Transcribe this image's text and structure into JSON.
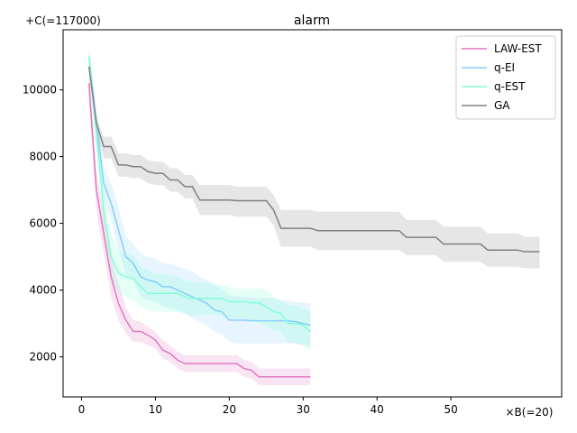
{
  "chart_data": {
    "type": "line",
    "title": "alarm",
    "xlabel": "",
    "ylabel": "",
    "y_offset_label": "+C(=117000)",
    "x_multiplier_label": "×B(=20)",
    "xlim": [
      -2.5,
      65
    ],
    "ylim": [
      800,
      11800
    ],
    "xticks": [
      0,
      10,
      20,
      30,
      40,
      50
    ],
    "xtick_labels": [
      "0",
      "10",
      "20",
      "30",
      "40",
      "50"
    ],
    "yticks": [
      2000,
      4000,
      6000,
      8000,
      10000
    ],
    "ytick_labels": [
      "2000",
      "4000",
      "6000",
      "8000",
      "10000"
    ],
    "legend_position": "top-right",
    "grid": false,
    "series": [
      {
        "name": "LAW-EST",
        "color": "#e377c2",
        "x": [
          1,
          2,
          3,
          4,
          5,
          6,
          7,
          8,
          9,
          10,
          11,
          12,
          13,
          14,
          15,
          16,
          17,
          18,
          19,
          20,
          21,
          22,
          23,
          24,
          25,
          26,
          27,
          28,
          29,
          30,
          31
        ],
        "y": [
          10200,
          7000,
          5700,
          4400,
          3600,
          3100,
          2760,
          2760,
          2650,
          2500,
          2200,
          2100,
          1900,
          1800,
          1800,
          1800,
          1800,
          1800,
          1800,
          1800,
          1800,
          1650,
          1600,
          1400,
          1400,
          1400,
          1400,
          1400,
          1400,
          1400,
          1400
        ],
        "upper": [
          10800,
          7600,
          6300,
          5000,
          4200,
          3500,
          3100,
          3050,
          2900,
          2750,
          2500,
          2350,
          2150,
          2050,
          2050,
          2050,
          2050,
          2050,
          2050,
          2050,
          2050,
          1900,
          1850,
          1650,
          1650,
          1650,
          1650,
          1650,
          1650,
          1650,
          1650
        ],
        "lower": [
          9600,
          6400,
          5100,
          3800,
          3100,
          2700,
          2450,
          2450,
          2350,
          2250,
          1950,
          1850,
          1650,
          1550,
          1550,
          1550,
          1550,
          1550,
          1550,
          1550,
          1550,
          1400,
          1350,
          1150,
          1150,
          1150,
          1150,
          1150,
          1150,
          1150,
          1150
        ]
      },
      {
        "name": "q-EI",
        "color": "#87cefa",
        "x": [
          1,
          2,
          3,
          4,
          5,
          6,
          7,
          8,
          9,
          10,
          11,
          12,
          13,
          14,
          15,
          16,
          17,
          18,
          19,
          20,
          21,
          22,
          23,
          24,
          25,
          26,
          27,
          28,
          29,
          30,
          31
        ],
        "y": [
          11000,
          9000,
          7200,
          6600,
          5800,
          5000,
          4800,
          4400,
          4300,
          4250,
          4100,
          4100,
          4000,
          3900,
          3800,
          3700,
          3600,
          3400,
          3350,
          3100,
          3100,
          3100,
          3080,
          3080,
          3080,
          3080,
          3080,
          3080,
          3050,
          3000,
          2950
        ],
        "upper": [
          11300,
          9500,
          7700,
          7200,
          6500,
          5600,
          5400,
          5100,
          5000,
          4950,
          4800,
          4800,
          4700,
          4650,
          4550,
          4400,
          4300,
          4150,
          4050,
          3850,
          3800,
          3800,
          3780,
          3760,
          3760,
          3760,
          3700,
          3700,
          3650,
          3620,
          3600
        ],
        "lower": [
          10600,
          8400,
          6700,
          6100,
          5200,
          4500,
          4300,
          3800,
          3700,
          3650,
          3500,
          3450,
          3400,
          3300,
          3150,
          3050,
          2950,
          2750,
          2650,
          2450,
          2400,
          2400,
          2400,
          2400,
          2400,
          2400,
          2400,
          2400,
          2400,
          2350,
          2300
        ]
      },
      {
        "name": "q-EST",
        "color": "#7fffd4",
        "x": [
          1,
          2,
          3,
          4,
          5,
          6,
          7,
          8,
          9,
          10,
          11,
          12,
          13,
          14,
          15,
          16,
          17,
          18,
          19,
          20,
          21,
          22,
          23,
          24,
          25,
          26,
          27,
          28,
          29,
          30,
          31
        ],
        "y": [
          11000,
          8700,
          6400,
          5000,
          4500,
          4400,
          4350,
          4100,
          3900,
          3900,
          3900,
          3900,
          3900,
          3800,
          3750,
          3750,
          3750,
          3750,
          3750,
          3650,
          3650,
          3650,
          3620,
          3620,
          3500,
          3350,
          3300,
          3000,
          3000,
          2950,
          2750
        ],
        "upper": [
          11300,
          9100,
          7000,
          5700,
          5200,
          5100,
          5050,
          4700,
          4600,
          4500,
          4500,
          4450,
          4400,
          4300,
          4250,
          4250,
          4200,
          4200,
          4150,
          4100,
          4050,
          4050,
          4050,
          4050,
          4000,
          3800,
          3700,
          3550,
          3550,
          3450,
          3350
        ],
        "lower": [
          10600,
          8200,
          5800,
          4400,
          3900,
          3800,
          3700,
          3500,
          3400,
          3350,
          3350,
          3350,
          3350,
          3300,
          3250,
          3250,
          3250,
          3250,
          3250,
          3150,
          3150,
          3150,
          3100,
          3050,
          2900,
          2800,
          2750,
          2450,
          2400,
          2350,
          2200
        ]
      },
      {
        "name": "GA",
        "color": "#808080",
        "x": [
          1,
          2,
          3,
          4,
          5,
          6,
          7,
          8,
          9,
          10,
          11,
          12,
          13,
          14,
          15,
          16,
          17,
          18,
          19,
          20,
          21,
          22,
          23,
          24,
          25,
          26,
          27,
          28,
          29,
          30,
          31,
          32,
          33,
          34,
          35,
          36,
          37,
          38,
          39,
          40,
          41,
          42,
          43,
          44,
          45,
          46,
          47,
          48,
          49,
          50,
          51,
          52,
          53,
          54,
          55,
          56,
          57,
          58,
          59,
          60,
          61,
          62
        ],
        "y": [
          10700,
          9000,
          8300,
          8300,
          7750,
          7750,
          7700,
          7700,
          7550,
          7500,
          7500,
          7300,
          7300,
          7100,
          7100,
          6700,
          6700,
          6700,
          6700,
          6700,
          6680,
          6680,
          6680,
          6680,
          6680,
          6400,
          5850,
          5850,
          5850,
          5850,
          5850,
          5780,
          5780,
          5780,
          5780,
          5780,
          5780,
          5780,
          5780,
          5780,
          5780,
          5780,
          5780,
          5580,
          5580,
          5580,
          5580,
          5580,
          5380,
          5380,
          5380,
          5380,
          5380,
          5380,
          5200,
          5200,
          5200,
          5200,
          5200,
          5150,
          5150,
          5150
        ],
        "upper": [
          10700,
          9200,
          8600,
          8600,
          8100,
          8100,
          8050,
          8050,
          7900,
          7850,
          7850,
          7650,
          7650,
          7450,
          7450,
          7150,
          7150,
          7150,
          7150,
          7150,
          7100,
          7100,
          7100,
          7100,
          7100,
          6850,
          6400,
          6400,
          6400,
          6400,
          6400,
          6350,
          6350,
          6350,
          6350,
          6350,
          6350,
          6350,
          6350,
          6350,
          6350,
          6350,
          6350,
          6100,
          6100,
          6100,
          6100,
          6100,
          5900,
          5900,
          5900,
          5900,
          5900,
          5900,
          5700,
          5700,
          5700,
          5700,
          5700,
          5600,
          5600,
          5600
        ],
        "lower": [
          10600,
          8800,
          7950,
          7950,
          7400,
          7400,
          7350,
          7350,
          7200,
          7150,
          7150,
          6950,
          6950,
          6750,
          6750,
          6250,
          6250,
          6250,
          6250,
          6250,
          6200,
          6200,
          6200,
          6200,
          6200,
          5950,
          5300,
          5300,
          5300,
          5300,
          5300,
          5200,
          5200,
          5200,
          5200,
          5200,
          5200,
          5200,
          5200,
          5200,
          5200,
          5200,
          5200,
          5050,
          5050,
          5050,
          5050,
          5050,
          4850,
          4850,
          4850,
          4850,
          4850,
          4850,
          4700,
          4700,
          4700,
          4700,
          4700,
          4650,
          4650,
          4650
        ]
      }
    ]
  }
}
